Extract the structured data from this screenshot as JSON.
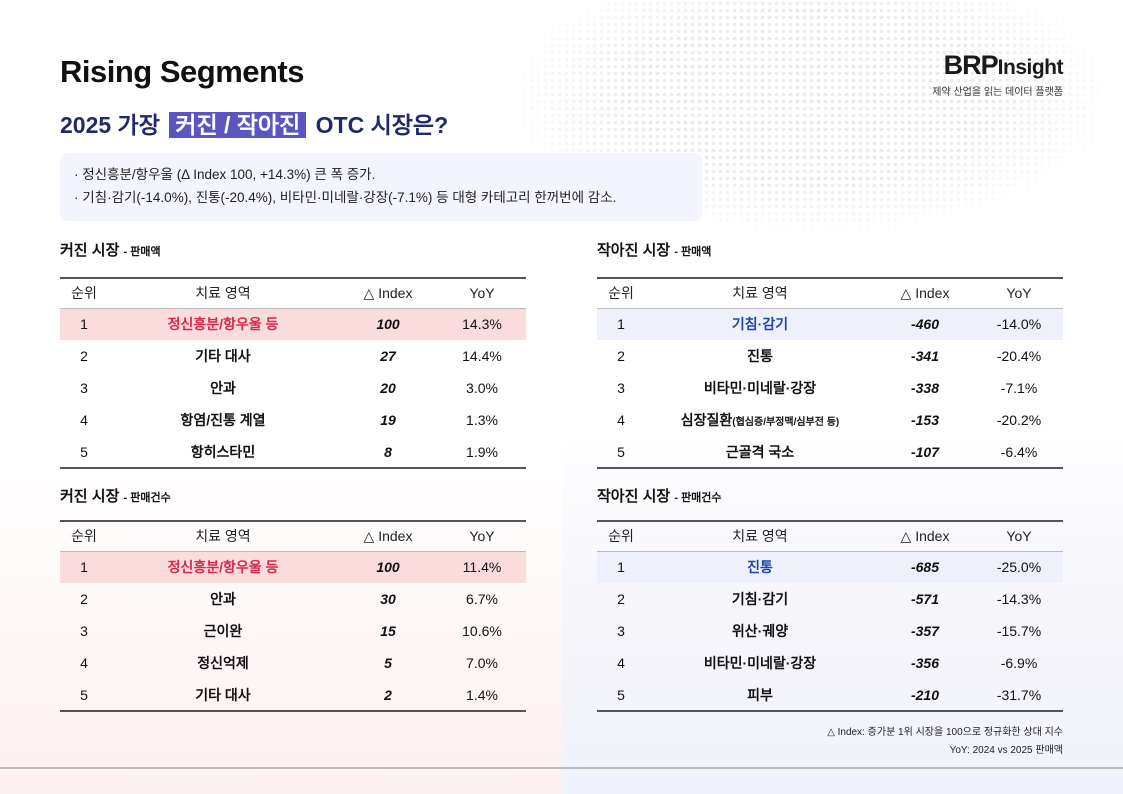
{
  "header": {
    "title": "Rising Segments",
    "subtitle_pre": "2025 가장",
    "subtitle_hl": "커진 / 작아진",
    "subtitle_post": "OTC 시장은?"
  },
  "logo": {
    "brand_main": "BRP",
    "brand_sub": "Insight",
    "tagline": "제약 산업을 읽는 데이터 플랫폼"
  },
  "summary": [
    "· 정신흥분/항우울 (Δ Index 100, +14.3%) 큰 폭 증가.",
    "· 기침·감기(-14.0%), 진통(-20.4%), 비타민·미네랄·강장(-7.1%) 등 대형 카테고리 한꺼번에 감소."
  ],
  "columns": [
    "순위",
    "치료 영역",
    "△ Index",
    "YoY"
  ],
  "tables": [
    {
      "title": "커진 시장",
      "sub": "- 판매액",
      "highlight": "red",
      "rows": [
        [
          "1",
          "정신흥분/항우울 등",
          "100",
          "14.3%"
        ],
        [
          "2",
          "기타 대사",
          "27",
          "14.4%"
        ],
        [
          "3",
          "안과",
          "20",
          "3.0%"
        ],
        [
          "4",
          "항염/진통 계열",
          "19",
          "1.3%"
        ],
        [
          "5",
          "항히스타민",
          "8",
          "1.9%"
        ]
      ]
    },
    {
      "title": "커진 시장",
      "sub": "- 판매건수",
      "highlight": "red",
      "rows": [
        [
          "1",
          "정신흥분/항우울 등",
          "100",
          "11.4%"
        ],
        [
          "2",
          "안과",
          "30",
          "6.7%"
        ],
        [
          "3",
          "근이완",
          "15",
          "10.6%"
        ],
        [
          "4",
          "정신억제",
          "5",
          "7.0%"
        ],
        [
          "5",
          "기타 대사",
          "2",
          "1.4%"
        ]
      ]
    },
    {
      "title": "작아진 시장",
      "sub": "- 판매액",
      "highlight": "blue",
      "rows": [
        [
          "1",
          "기침·감기",
          "-460",
          "-14.0%"
        ],
        [
          "2",
          "진통",
          "-341",
          "-20.4%"
        ],
        [
          "3",
          "비타민·미네랄·강장",
          "-338",
          "-7.1%"
        ],
        [
          "4",
          "심장질환",
          "-153",
          "-20.2%",
          "(협심증/부정맥/심부전 등)"
        ],
        [
          "5",
          "근골격 국소",
          "-107",
          "-6.4%"
        ]
      ]
    },
    {
      "title": "작아진 시장",
      "sub": "- 판매건수",
      "highlight": "blue",
      "rows": [
        [
          "1",
          "진통",
          "-685",
          "-25.0%"
        ],
        [
          "2",
          "기침·감기",
          "-571",
          "-14.3%"
        ],
        [
          "3",
          "위산·궤양",
          "-357",
          "-15.7%"
        ],
        [
          "4",
          "비타민·미네랄·강장",
          "-356",
          "-6.9%"
        ],
        [
          "5",
          "피부",
          "-210",
          "-31.7%"
        ]
      ]
    }
  ],
  "notes": [
    "△ Index: 증가분 1위 시장을 100으로 정규화한 상대 지수",
    "YoY: 2024 vs 2025 판매액"
  ]
}
